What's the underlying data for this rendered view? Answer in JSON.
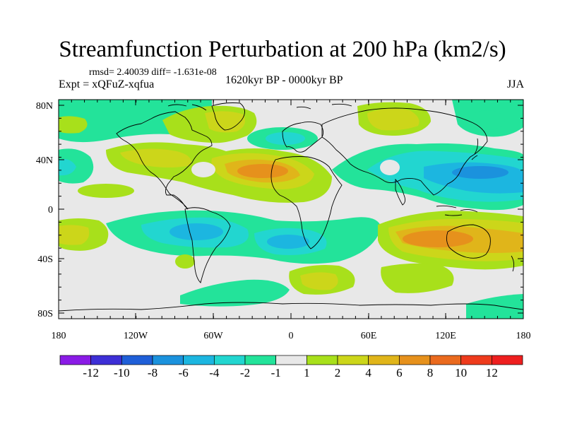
{
  "title": "Streamfunction Perturbation at 200 hPa (km2/s)",
  "stats_text": "rmsd= 2.40039 diff= -1.631e-08",
  "expt_text": "Expt = xQFuZ-xqfua",
  "period_text": "1620kyr BP - 0000kyr BP",
  "season_text": "JJA",
  "lat_ticks": [
    "80N",
    "40N",
    "0",
    "40S",
    "80S"
  ],
  "lon_ticks": [
    "180",
    "120W",
    "60W",
    "0",
    "60E",
    "120E",
    "180"
  ],
  "colorbar": {
    "labels": [
      "-12",
      "-10",
      "-8",
      "-6",
      "-4",
      "-2",
      "-1",
      "1",
      "2",
      "4",
      "6",
      "8",
      "10",
      "12"
    ],
    "colors": [
      "#8a1be6",
      "#3d2fd6",
      "#1f5fd8",
      "#1b92dd",
      "#1cb6e0",
      "#22d6d0",
      "#23e39a",
      "#e8e8e8",
      "#a8e01b",
      "#ccd61a",
      "#e0b51a",
      "#e6911c",
      "#ea6a1e",
      "#ee3b1c",
      "#ee1f1f"
    ]
  },
  "colors": {
    "background": "#ffffff",
    "neutral": "#e8e8e8",
    "coastline": "#000000"
  }
}
